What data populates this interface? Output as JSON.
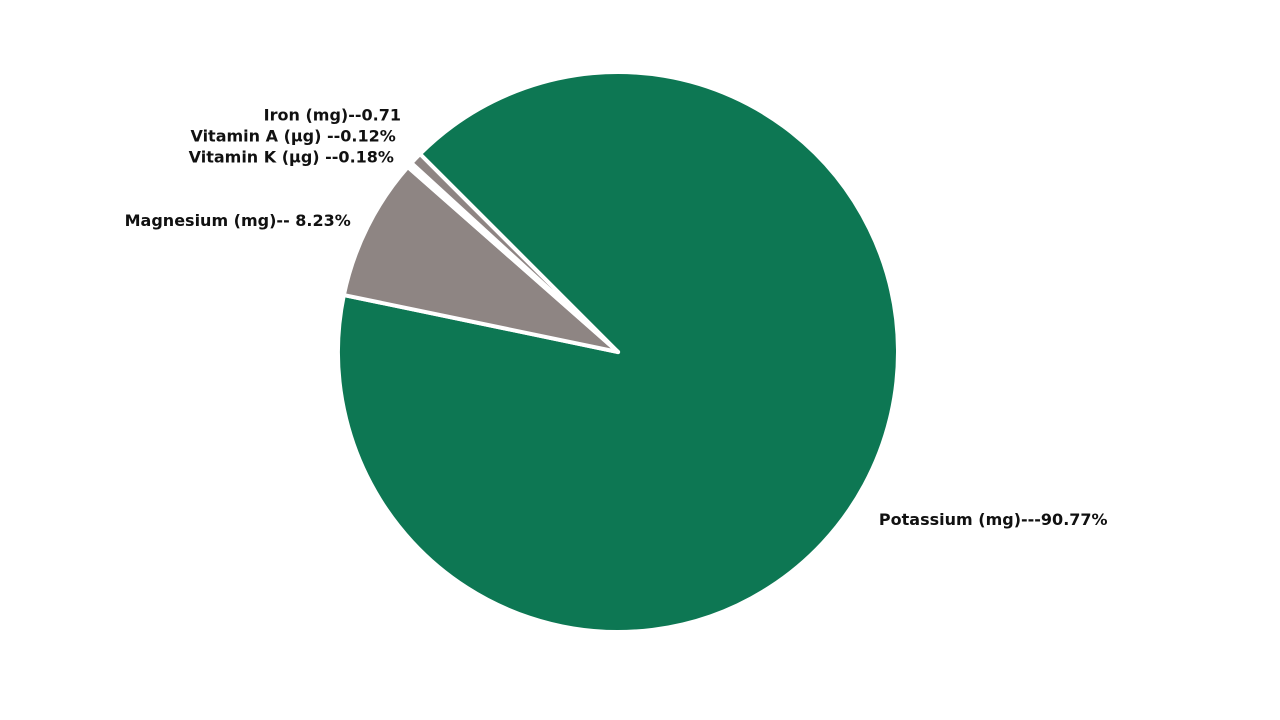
{
  "chart_data": {
    "type": "pie",
    "categories": [
      "Potassium (mg)---90.77%",
      "Magnesium (mg)-- 8.23%",
      "Vitamin K (μg) --0.18%",
      "Vitamin A (μg) --0.12%",
      "Iron (mg)--0.71"
    ],
    "values": [
      90.77,
      8.23,
      0.18,
      0.12,
      0.71
    ],
    "colors": [
      "#0d7753",
      "#8e8583",
      "#8e8583",
      "#8e8583",
      "#8e8583"
    ]
  }
}
